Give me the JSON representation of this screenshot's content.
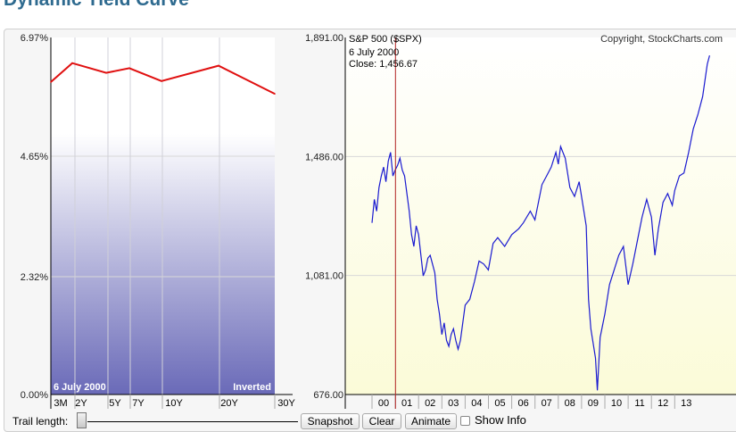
{
  "page": {
    "title": "Dynamic Yield Curve"
  },
  "yield_panel": {
    "y_ticks": [
      "6.97%",
      "4.65%",
      "2.32%",
      "0.00%"
    ],
    "x_ticks": [
      "3M",
      "2Y",
      "5Y",
      "7Y",
      "10Y",
      "20Y",
      "30Y"
    ],
    "date_label": "6  July 2000",
    "status_label": "Inverted",
    "line_color": "#e01010"
  },
  "spx_panel": {
    "series_label": "S&P 500 ($SPX)",
    "copyright": "Copyright, StockCharts.com",
    "date_label": "6  July 2000",
    "close_label": "Close: 1,456.67",
    "y_ticks": [
      "1,891.00",
      "1,486.00",
      "1,081.00",
      "676.00"
    ],
    "x_ticks": [
      "00",
      "01",
      "02",
      "03",
      "04",
      "05",
      "06",
      "07",
      "08",
      "09",
      "10",
      "11",
      "12",
      "13"
    ],
    "line_color": "#1a1ad0",
    "marker_color": "#b02020"
  },
  "controls": {
    "trail_label": "Trail length:",
    "snapshot_label": "Snapshot",
    "clear_label": "Clear",
    "animate_label": "Animate",
    "show_info_label": "Show Info",
    "show_info_checked": false
  },
  "chart_data": [
    {
      "type": "line",
      "x": [
        "3M",
        "2Y",
        "5Y",
        "7Y",
        "10Y",
        "20Y",
        "30Y"
      ],
      "series": [
        {
          "values": [
            6.1,
            6.47,
            6.28,
            6.37,
            6.12,
            6.42,
            5.87
          ]
        }
      ],
      "ylim": [
        0,
        6.97
      ],
      "date": "6 July 2000",
      "status": "Inverted"
    },
    {
      "type": "line",
      "x": [
        "1999.5",
        "1999.6",
        "1999.7",
        "1999.8",
        "1999.9",
        "2000.0",
        "2000.1",
        "2000.2",
        "2000.3",
        "2000.4",
        "2000.5",
        "2000.6",
        "2000.7",
        "2000.8",
        "2000.9",
        "2001.0",
        "2001.1",
        "2001.2",
        "2001.3",
        "2001.4",
        "2001.5",
        "2001.6",
        "2001.7",
        "2001.8",
        "2001.9",
        "2002.0",
        "2002.1",
        "2002.2",
        "2002.3",
        "2002.4",
        "2002.5",
        "2002.6",
        "2002.7",
        "2002.8",
        "2002.9",
        "2003.0",
        "2003.1",
        "2003.2",
        "2003.3",
        "2003.5",
        "2003.7",
        "2003.9",
        "2004.1",
        "2004.3",
        "2004.5",
        "2004.7",
        "2004.9",
        "2005.2",
        "2005.5",
        "2005.8",
        "2006.0",
        "2006.3",
        "2006.5",
        "2006.8",
        "2007.0",
        "2007.2",
        "2007.4",
        "2007.5",
        "2007.6",
        "2007.8",
        "2008.0",
        "2008.2",
        "2008.4",
        "2008.6",
        "2008.7",
        "2008.8",
        "2008.9",
        "2009.0",
        "2009.1",
        "2009.18",
        "2009.3",
        "2009.5",
        "2009.7",
        "2009.9",
        "2010.1",
        "2010.3",
        "2010.5",
        "2010.7",
        "2010.9",
        "2011.1",
        "2011.3",
        "2011.5",
        "2011.65",
        "2011.8",
        "2012.0",
        "2012.2",
        "2012.4",
        "2012.5",
        "2012.7",
        "2012.9",
        "2013.1",
        "2013.3",
        "2013.5",
        "2013.7",
        "2013.9",
        "2014.0"
      ],
      "series": [
        {
          "name": "S&P 500 ($SPX)",
          "values": [
            1260,
            1340,
            1300,
            1380,
            1420,
            1450,
            1400,
            1470,
            1500,
            1420,
            1440,
            1456,
            1480,
            1440,
            1420,
            1360,
            1300,
            1220,
            1180,
            1250,
            1220,
            1150,
            1080,
            1100,
            1140,
            1150,
            1120,
            1090,
            1000,
            950,
            880,
            920,
            860,
            840,
            880,
            900,
            860,
            830,
            860,
            980,
            1000,
            1060,
            1130,
            1120,
            1100,
            1190,
            1210,
            1180,
            1220,
            1240,
            1260,
            1300,
            1270,
            1390,
            1420,
            1450,
            1500,
            1460,
            1520,
            1480,
            1380,
            1350,
            1400,
            1300,
            1250,
            1000,
            900,
            850,
            800,
            690,
            870,
            950,
            1050,
            1100,
            1150,
            1180,
            1050,
            1120,
            1200,
            1280,
            1340,
            1280,
            1150,
            1240,
            1330,
            1360,
            1320,
            1370,
            1420,
            1430,
            1500,
            1580,
            1630,
            1690,
            1800,
            1830
          ]
        }
      ],
      "ylim": [
        676,
        1891
      ],
      "close": 1456.67
    }
  ]
}
